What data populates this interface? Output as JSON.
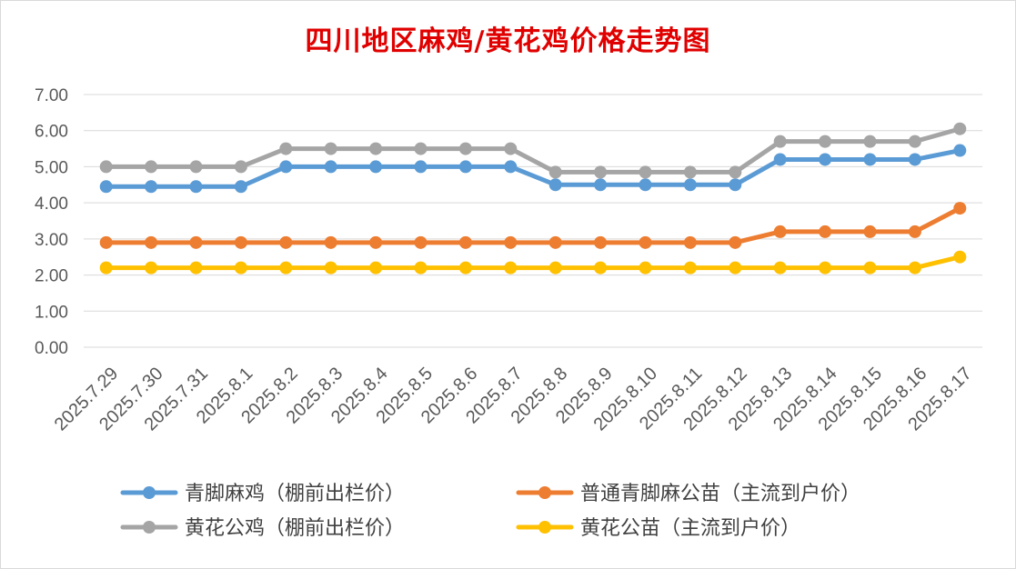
{
  "chart_data": {
    "type": "line",
    "title": "四川地区麻鸡/黄花鸡价格走势图",
    "categories": [
      "2025.7.29",
      "2025.7.30",
      "2025.7.31",
      "2025.8.1",
      "2025.8.2",
      "2025.8.3",
      "2025.8.4",
      "2025.8.5",
      "2025.8.6",
      "2025.8.7",
      "2025.8.8",
      "2025.8.9",
      "2025.8.10",
      "2025.8.11",
      "2025.8.12",
      "2025.8.13",
      "2025.8.14",
      "2025.8.15",
      "2025.8.16",
      "2025.8.17"
    ],
    "y_ticks": [
      "0.00",
      "1.00",
      "2.00",
      "3.00",
      "4.00",
      "5.00",
      "6.00",
      "7.00"
    ],
    "ylim": [
      0,
      7
    ],
    "grid": true,
    "legend_position": "bottom",
    "series": [
      {
        "name": "青脚麻鸡（棚前出栏价）",
        "color": "#5b9bd5",
        "values": [
          4.45,
          4.45,
          4.45,
          4.45,
          5.0,
          5.0,
          5.0,
          5.0,
          5.0,
          5.0,
          4.5,
          4.5,
          4.5,
          4.5,
          4.5,
          5.2,
          5.2,
          5.2,
          5.2,
          5.45
        ]
      },
      {
        "name": "普通青脚麻公苗（主流到户价）",
        "color": "#ed7d31",
        "values": [
          2.9,
          2.9,
          2.9,
          2.9,
          2.9,
          2.9,
          2.9,
          2.9,
          2.9,
          2.9,
          2.9,
          2.9,
          2.9,
          2.9,
          2.9,
          3.2,
          3.2,
          3.2,
          3.2,
          3.85
        ]
      },
      {
        "name": "黄花公鸡（棚前出栏价）",
        "color": "#a5a5a5",
        "values": [
          5.0,
          5.0,
          5.0,
          5.0,
          5.5,
          5.5,
          5.5,
          5.5,
          5.5,
          5.5,
          4.85,
          4.85,
          4.85,
          4.85,
          4.85,
          5.7,
          5.7,
          5.7,
          5.7,
          6.05
        ]
      },
      {
        "name": "黄花公苗（主流到户价）",
        "color": "#ffc000",
        "values": [
          2.2,
          2.2,
          2.2,
          2.2,
          2.2,
          2.2,
          2.2,
          2.2,
          2.2,
          2.2,
          2.2,
          2.2,
          2.2,
          2.2,
          2.2,
          2.2,
          2.2,
          2.2,
          2.2,
          2.5
        ]
      }
    ]
  }
}
